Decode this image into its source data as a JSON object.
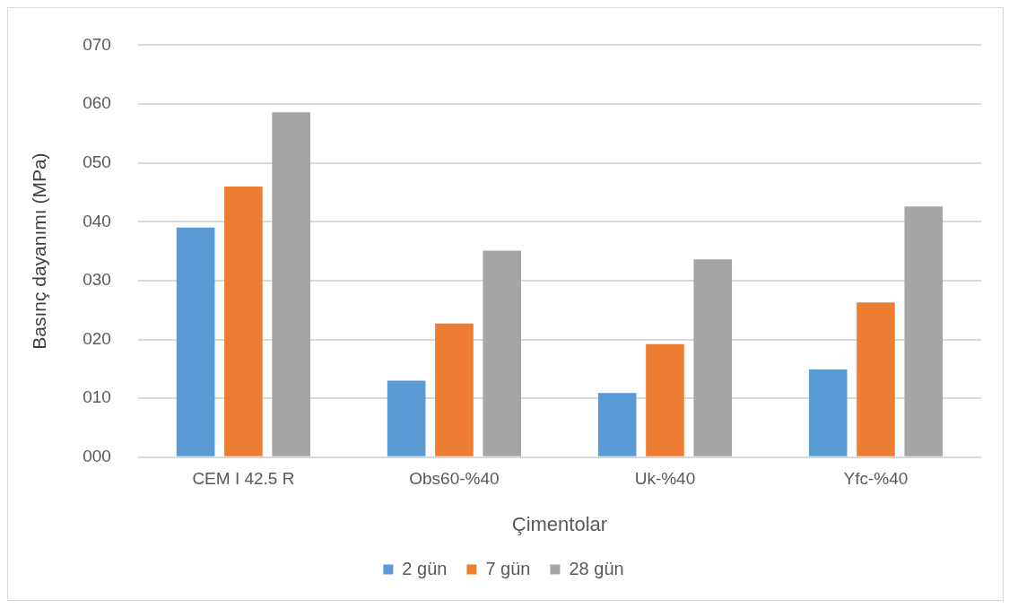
{
  "chart_data": {
    "type": "bar",
    "xlabel": "Çimentolar",
    "ylabel": "Basınç dayanımı (MPa)",
    "categories": [
      "CEM I 42.5 R",
      "Obs60-%40",
      "Uk-%40",
      "Yfc-%40"
    ],
    "series": [
      {
        "name": "2 gün",
        "color": "#5b9bd5",
        "values": [
          39,
          13,
          10.9,
          14.9
        ]
      },
      {
        "name": "7 gün",
        "color": "#ed7d31",
        "values": [
          46,
          22.7,
          19.2,
          26.3
        ]
      },
      {
        "name": "28 gün",
        "color": "#a5a5a5",
        "values": [
          58.6,
          35.1,
          33.6,
          42.6
        ]
      }
    ],
    "ylim": [
      0,
      70
    ],
    "yticks": [
      {
        "value": 0,
        "label": "000"
      },
      {
        "value": 10,
        "label": "010"
      },
      {
        "value": 20,
        "label": "020"
      },
      {
        "value": 30,
        "label": "030"
      },
      {
        "value": 40,
        "label": "040"
      },
      {
        "value": 50,
        "label": "050"
      },
      {
        "value": 60,
        "label": "060"
      },
      {
        "value": 70,
        "label": "070"
      }
    ],
    "grid": "y",
    "legend": "bottom"
  }
}
